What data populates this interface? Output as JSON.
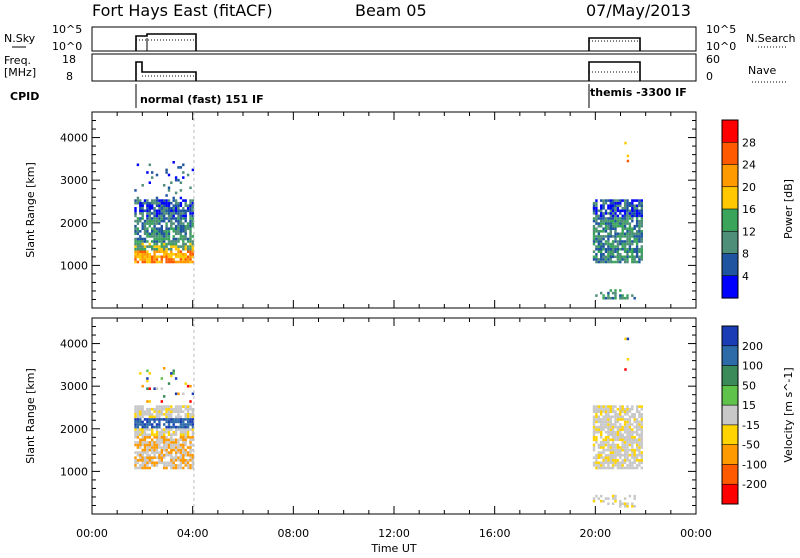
{
  "header": {
    "title": "Fort Hays East (fitACF)",
    "beam": "Beam 05",
    "date": "07/May/2013"
  },
  "strips": {
    "nsky_label": "N.Sky",
    "nsky_ticks": [
      "10^5",
      "10^0"
    ],
    "nsearch_label": "N.Search",
    "nsearch_ticks": [
      "10^5",
      "10^0"
    ],
    "freq_label": "Freq.",
    "freq_unit": "[MHz]",
    "freq_ticks": [
      "18",
      "8"
    ],
    "nave_label": "Nave",
    "nave_ticks": [
      "60",
      "0"
    ],
    "cpid_label": "CPID",
    "modes": [
      {
        "text": "normal (fast) 151 IF",
        "start": "01:40"
      },
      {
        "text": "themis -3300 IF",
        "start": "20:00"
      }
    ]
  },
  "chart_data": [
    {
      "type": "heatmap",
      "panel": "power",
      "ylabel": "Slant Range [km]",
      "xlabel": "",
      "yticks": [
        1000,
        2000,
        3000,
        4000
      ],
      "ylim": [
        0,
        4600
      ],
      "xlim_hours": [
        0,
        24
      ],
      "colorbar": {
        "label": "Power [dB]",
        "ticks": [
          "28",
          "24",
          "20",
          "16",
          "12",
          "8",
          "4"
        ],
        "colors": [
          "#ff0000",
          "#ff5a00",
          "#ff9a00",
          "#ffc800",
          "#3aa45a",
          "#4f8e78",
          "#1f55a0",
          "#0000ff"
        ]
      },
      "blocks": [
        {
          "t0": 1.68,
          "t1": 4.05,
          "r0": 1050,
          "r1": 3400
        },
        {
          "t0": 19.9,
          "t1": 21.8,
          "r0": 1050,
          "r1": 2500
        },
        {
          "t0": 19.9,
          "t1": 21.6,
          "r0": 200,
          "r1": 420
        },
        {
          "t0": 21.15,
          "t1": 21.25,
          "r0": 3000,
          "r1": 4200
        }
      ]
    },
    {
      "type": "heatmap",
      "panel": "velocity",
      "ylabel": "Slant Range [km]",
      "xlabel": "Time UT",
      "yticks": [
        1000,
        2000,
        3000,
        4000
      ],
      "ylim": [
        0,
        4600
      ],
      "xlim_hours": [
        0,
        24
      ],
      "xticks": [
        "00:00",
        "04:00",
        "08:00",
        "12:00",
        "16:00",
        "20:00",
        "00:00"
      ],
      "colorbar": {
        "label": "Velocity [m s^-1]",
        "ticks": [
          "200",
          "100",
          "50",
          "15",
          "-15",
          "-50",
          "-100",
          "-200"
        ],
        "colors": [
          "#1a3cb4",
          "#2d6aa8",
          "#3a8a5a",
          "#5fc24a",
          "#c8c8c8",
          "#ffd400",
          "#ff9a00",
          "#ff5a00",
          "#ff0000"
        ]
      },
      "blocks": [
        {
          "t0": 1.68,
          "t1": 4.05,
          "r0": 1050,
          "r1": 3400
        },
        {
          "t0": 19.9,
          "t1": 21.8,
          "r0": 1050,
          "r1": 2500
        },
        {
          "t0": 19.9,
          "t1": 21.6,
          "r0": 150,
          "r1": 420
        },
        {
          "t0": 21.15,
          "t1": 21.25,
          "r0": 3000,
          "r1": 4200
        }
      ]
    }
  ]
}
